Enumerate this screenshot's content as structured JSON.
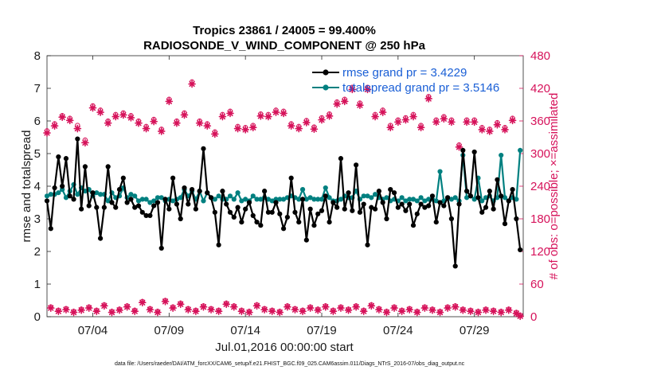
{
  "chart_data": {
    "type": "line",
    "title_line1": "Tropics 23861 / 24005 = 99.400%",
    "title_line2": "RADIOSONDE_V_WIND_COMPONENT @ 250 hPa",
    "xlabel": "Jul.01,2016 00:00:00 start",
    "ylabel": "rmse and totalspread",
    "ylabel_right": "# of obs: o=possible; ×=assimilated",
    "footer": "data file: /Users/raeder/DAI/ATM_forcXX/CAM6_setup/f.e21.FHIST_BGC.f09_025.CAM6assim.011/Diags_NTrS_2016-07/obs_diag_output.nc",
    "xlim": [
      1.0,
      32.2
    ],
    "ylim": [
      0,
      8
    ],
    "ylim_right": [
      0,
      480
    ],
    "x_ticks": [
      4,
      9,
      14,
      19,
      24,
      29
    ],
    "x_tick_labels": [
      "07/04",
      "07/09",
      "07/14",
      "07/19",
      "07/24",
      "07/29"
    ],
    "y_ticks": [
      0,
      1,
      2,
      3,
      4,
      5,
      6,
      7,
      8
    ],
    "y_tick_labels": [
      "0",
      "1",
      "2",
      "3",
      "4",
      "5",
      "6",
      "7",
      "8"
    ],
    "y_ticks_right": [
      0,
      60,
      120,
      180,
      240,
      300,
      360,
      420,
      480
    ],
    "y_tick_labels_right": [
      "0",
      "60",
      "120",
      "180",
      "240",
      "300",
      "360",
      "420",
      "480"
    ],
    "colors": {
      "rmse": "#000000",
      "totalspread": "#008080",
      "obs": "#d6125a",
      "legend_text": "#1a5fd6"
    },
    "legend": [
      "rmse grand pr = 3.4229",
      "totalspread grand pr = 3.5146"
    ],
    "x": [
      1.0,
      1.25,
      1.5,
      1.75,
      2.0,
      2.25,
      2.5,
      2.75,
      3.0,
      3.25,
      3.5,
      3.75,
      4.0,
      4.25,
      4.5,
      4.75,
      5.0,
      5.25,
      5.5,
      5.75,
      6.0,
      6.25,
      6.5,
      6.75,
      7.0,
      7.25,
      7.5,
      7.75,
      8.0,
      8.25,
      8.5,
      8.75,
      9.0,
      9.25,
      9.5,
      9.75,
      10.0,
      10.25,
      10.5,
      10.75,
      11.0,
      11.25,
      11.5,
      11.75,
      12.0,
      12.25,
      12.5,
      12.75,
      13.0,
      13.25,
      13.5,
      13.75,
      14.0,
      14.25,
      14.5,
      14.75,
      15.0,
      15.25,
      15.5,
      15.75,
      16.0,
      16.25,
      16.5,
      16.75,
      17.0,
      17.25,
      17.5,
      17.75,
      18.0,
      18.25,
      18.5,
      18.75,
      19.0,
      19.25,
      19.5,
      19.75,
      20.0,
      20.25,
      20.5,
      20.75,
      21.0,
      21.25,
      21.5,
      21.75,
      22.0,
      22.25,
      22.5,
      22.75,
      23.0,
      23.25,
      23.5,
      23.75,
      24.0,
      24.25,
      24.5,
      24.75,
      25.0,
      25.25,
      25.5,
      25.75,
      26.0,
      26.25,
      26.5,
      26.75,
      27.0,
      27.25,
      27.5,
      27.75,
      28.0,
      28.25,
      28.5,
      28.75,
      29.0,
      29.25,
      29.5,
      29.75,
      30.0,
      30.25,
      30.5,
      30.75,
      31.0,
      31.25,
      31.5,
      31.75,
      32.0
    ],
    "series": [
      {
        "name": "rmse",
        "marker": "filled-circle",
        "axis": "left",
        "values": [
          3.55,
          2.7,
          3.95,
          4.9,
          4.0,
          4.85,
          3.7,
          3.6,
          5.45,
          3.3,
          4.6,
          3.4,
          3.8,
          3.35,
          2.4,
          3.35,
          4.6,
          3.5,
          3.35,
          3.9,
          4.25,
          3.5,
          3.6,
          3.35,
          3.4,
          3.2,
          3.1,
          3.1,
          3.4,
          3.5,
          2.1,
          3.6,
          3.3,
          4.25,
          3.45,
          3.0,
          3.95,
          3.45,
          3.9,
          3.3,
          3.85,
          5.15,
          3.8,
          3.65,
          3.2,
          2.2,
          3.85,
          3.45,
          3.2,
          3.05,
          3.35,
          2.9,
          3.3,
          3.5,
          3.1,
          2.9,
          2.8,
          3.85,
          3.2,
          3.2,
          3.5,
          3.15,
          2.7,
          3.05,
          4.25,
          3.2,
          2.9,
          3.6,
          2.35,
          3.3,
          2.8,
          3.15,
          3.25,
          3.7,
          2.9,
          3.5,
          3.35,
          4.85,
          3.3,
          3.8,
          3.25,
          4.65,
          3.2,
          3.45,
          2.2,
          3.35,
          3.3,
          3.85,
          3.5,
          3.0,
          3.9,
          3.8,
          3.35,
          3.45,
          3.25,
          3.45,
          2.8,
          3.15,
          3.45,
          3.35,
          3.4,
          3.7,
          2.9,
          3.5,
          3.4,
          3.65,
          3.0,
          1.55,
          3.45,
          5.1,
          3.85,
          3.7,
          5.05,
          3.65,
          3.2,
          3.35,
          3.85,
          3.3,
          4.2,
          3.7,
          2.85,
          3.55,
          3.9,
          3.0,
          2.05
        ]
      },
      {
        "name": "totalspread",
        "marker": "filled-circle",
        "axis": "left",
        "values": [
          3.7,
          3.75,
          3.75,
          3.8,
          3.9,
          3.65,
          3.85,
          4.05,
          3.75,
          3.95,
          3.85,
          3.9,
          3.7,
          3.8,
          3.75,
          3.75,
          3.55,
          3.8,
          3.65,
          3.7,
          3.95,
          3.65,
          3.75,
          3.7,
          3.55,
          3.6,
          3.6,
          3.5,
          3.55,
          3.65,
          3.65,
          3.55,
          3.6,
          3.55,
          3.6,
          3.65,
          3.9,
          3.7,
          3.85,
          3.6,
          3.85,
          3.55,
          3.8,
          3.65,
          3.6,
          3.7,
          3.6,
          3.6,
          3.7,
          3.6,
          3.8,
          3.55,
          3.6,
          3.55,
          3.7,
          3.6,
          3.6,
          3.65,
          3.6,
          3.55,
          3.6,
          3.6,
          3.6,
          3.65,
          3.7,
          3.65,
          3.6,
          3.9,
          3.6,
          3.65,
          3.6,
          3.6,
          3.6,
          3.95,
          3.65,
          3.55,
          3.55,
          3.6,
          3.7,
          3.65,
          3.65,
          3.85,
          3.6,
          3.7,
          3.7,
          3.65,
          3.75,
          3.65,
          3.6,
          3.65,
          3.55,
          3.6,
          3.55,
          3.65,
          3.55,
          3.6,
          3.6,
          3.55,
          3.65,
          3.55,
          3.6,
          3.6,
          3.55,
          4.45,
          3.55,
          3.65,
          3.6,
          3.65,
          3.55,
          4.95,
          3.65,
          3.7,
          3.6,
          4.25,
          3.55,
          3.65,
          3.7,
          3.55,
          3.65,
          4.95,
          3.65,
          3.55,
          3.65,
          3.6,
          5.1
        ]
      },
      {
        "name": "obs possible (o)",
        "marker": "open-circle",
        "axis": "right",
        "values": [
          342,
          18,
          355,
          12,
          370,
          15,
          365,
          10,
          352,
          14,
          325,
          18,
          388,
          12,
          380,
          22,
          360,
          10,
          372,
          14,
          375,
          20,
          370,
          12,
          360,
          28,
          350,
          15,
          363,
          10,
          345,
          30,
          400,
          18,
          360,
          25,
          375,
          15,
          432,
          12,
          360,
          20,
          355,
          15,
          340,
          12,
          372,
          25,
          378,
          20,
          350,
          12,
          348,
          10,
          352,
          22,
          373,
          15,
          372,
          12,
          380,
          10,
          378,
          20,
          355,
          15,
          350,
          12,
          361,
          18,
          349,
          14,
          366,
          20,
          373,
          12,
          395,
          18,
          400,
          14,
          422,
          20,
          393,
          12,
          422,
          22,
          372,
          15,
          380,
          10,
          352,
          18,
          362,
          12,
          366,
          15,
          372,
          10,
          352,
          18,
          405,
          14,
          362,
          10,
          368,
          18,
          362,
          20,
          316,
          14,
          362,
          12,
          362,
          10,
          348,
          14,
          345,
          12,
          357,
          10,
          348,
          14,
          365,
          8,
          3
        ]
      },
      {
        "name": "obs assimilated (x)",
        "marker": "asterisk",
        "axis": "right",
        "values": [
          338,
          16,
          351,
          10,
          367,
          13,
          361,
          8,
          346,
          12,
          320,
          16,
          384,
          10,
          376,
          20,
          356,
          8,
          368,
          12,
          371,
          18,
          366,
          10,
          356,
          26,
          346,
          13,
          359,
          8,
          341,
          28,
          396,
          16,
          356,
          23,
          371,
          13,
          428,
          10,
          356,
          18,
          351,
          13,
          336,
          10,
          368,
          23,
          374,
          18,
          346,
          10,
          344,
          8,
          348,
          20,
          369,
          13,
          368,
          10,
          376,
          8,
          374,
          18,
          351,
          13,
          346,
          10,
          357,
          16,
          345,
          12,
          362,
          18,
          369,
          10,
          391,
          16,
          396,
          12,
          418,
          18,
          389,
          10,
          418,
          20,
          368,
          13,
          376,
          8,
          348,
          16,
          358,
          10,
          362,
          13,
          368,
          8,
          348,
          16,
          401,
          12,
          358,
          8,
          364,
          16,
          358,
          18,
          312,
          12,
          358,
          10,
          358,
          8,
          344,
          12,
          341,
          10,
          353,
          8,
          344,
          12,
          361,
          6,
          1
        ]
      }
    ]
  }
}
